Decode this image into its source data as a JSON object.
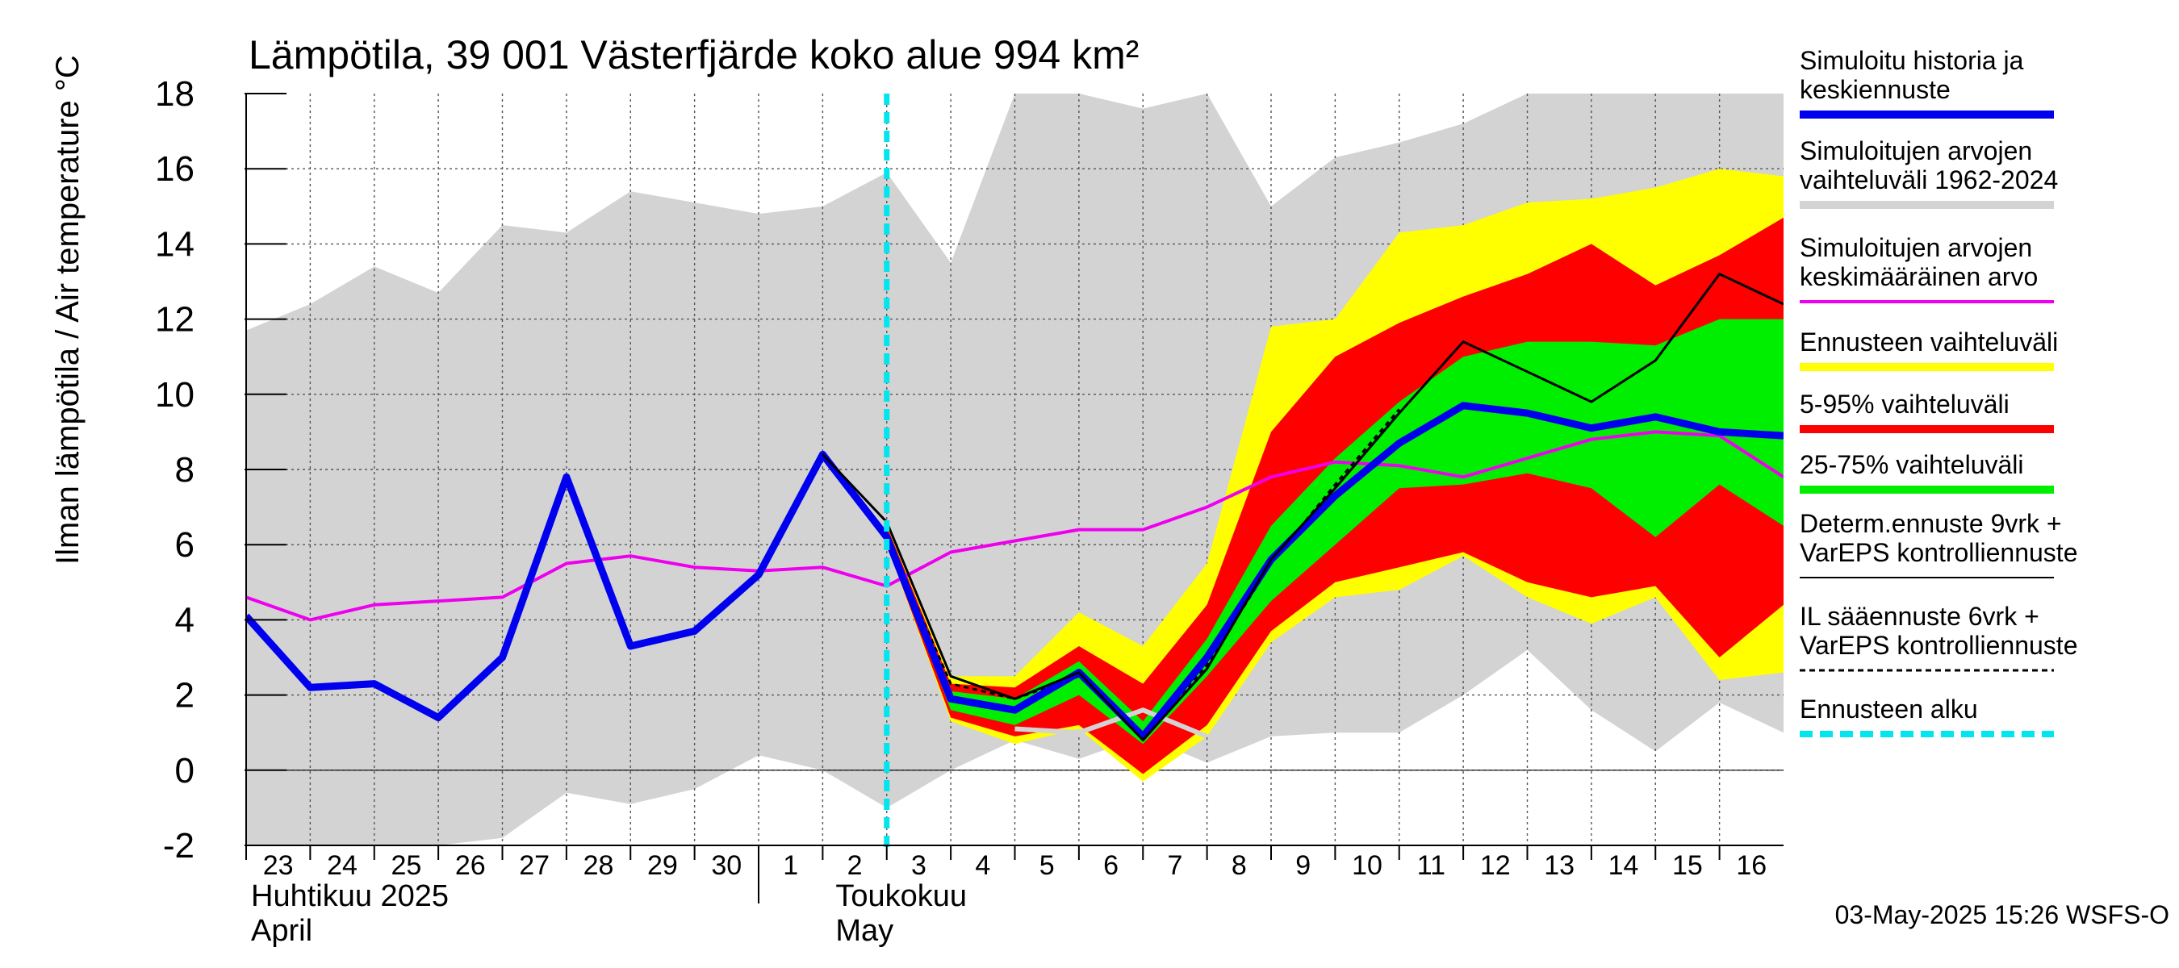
{
  "chart_data": {
    "type": "area",
    "title": "Lämpötila, 39 001 Västerfjärde koko alue 994 km²",
    "ylabel": "Ilman lämpötila / Air temperature   °C",
    "ylim": [
      -2,
      18
    ],
    "y_ticks": [
      "-2",
      "0",
      "2",
      "4",
      "6",
      "8",
      "10",
      "12",
      "14",
      "16",
      "18"
    ],
    "x_ticks": [
      "23",
      "24",
      "25",
      "26",
      "27",
      "28",
      "29",
      "30",
      "1",
      "2",
      "3",
      "4",
      "5",
      "6",
      "7",
      "8",
      "9",
      "10",
      "11",
      "12",
      "13",
      "14",
      "15",
      "16"
    ],
    "month_labels": [
      {
        "fi": "Huhtikuu  2025",
        "en": "April"
      },
      {
        "fi": "Toukokuu",
        "en": "May"
      }
    ],
    "forecast_start_day_index": 10,
    "timestamp": "03-May-2025 15:26 WSFS-O",
    "colors": {
      "history": "#0000ee",
      "range_1962_2024": "#d3d3d3",
      "mean": "#ee00ee",
      "ensemble_range": "#ffff00",
      "p5_95": "#ff0000",
      "p25_75": "#00ee00",
      "determ": "#000000",
      "forecast_start": "#00e5ee"
    },
    "legend": [
      {
        "label": "Simuloitu historia ja keskiennuste",
        "lines": [
          "Simuloitu historia ja",
          "keskiennuste"
        ],
        "color": "#0000ee",
        "style": "thick"
      },
      {
        "label": "Simuloitujen arvojen vaihteluväli 1962-2024",
        "lines": [
          "Simuloitujen arvojen",
          "vaihteluväli 1962-2024"
        ],
        "color": "#d3d3d3",
        "style": "thick"
      },
      {
        "label": "Simuloitujen arvojen keskimääräinen arvo",
        "lines": [
          "Simuloitujen arvojen",
          "keskimääräinen arvo"
        ],
        "color": "#ee00ee",
        "style": "medium"
      },
      {
        "label": "Ennusteen vaihteluväli",
        "lines": [
          "Ennusteen vaihteluväli"
        ],
        "color": "#ffff00",
        "style": "thick"
      },
      {
        "label": "5-95% vaihteluväli",
        "lines": [
          "5-95% vaihteluväli"
        ],
        "color": "#ff0000",
        "style": "thick"
      },
      {
        "label": "25-75% vaihteluväli",
        "lines": [
          "25-75% vaihteluväli"
        ],
        "color": "#00ee00",
        "style": "thick"
      },
      {
        "label": "Determ.ennuste 9vrk + VarEPS kontrolliennuste",
        "lines": [
          "Determ.ennuste 9vrk +",
          "VarEPS kontrolliennuste"
        ],
        "color": "#000000",
        "style": "thin"
      },
      {
        "label": "IL sääennuste 6vrk + VarEPS kontrolliennuste",
        "lines": [
          "IL sääennuste 6vrk  +",
          "  VarEPS kontrolliennuste"
        ],
        "color": "#000000",
        "style": "dashed"
      },
      {
        "label": "Ennusteen alku",
        "lines": [
          "Ennusteen alku"
        ],
        "color": "#00e5ee",
        "style": "dotted"
      }
    ],
    "series": {
      "range_1962_2024": {
        "x": [
          0,
          1,
          2,
          3,
          4,
          5,
          6,
          7,
          8,
          9,
          10,
          11,
          12,
          13,
          14,
          15,
          16,
          17,
          18,
          19,
          20,
          21,
          22,
          23,
          24
        ],
        "upper": [
          11.7,
          12.4,
          13.4,
          12.7,
          14.5,
          14.3,
          15.4,
          15.1,
          14.8,
          15.0,
          15.9,
          13.5,
          18.0,
          18.0,
          17.6,
          18.0,
          15.0,
          16.3,
          16.7,
          17.2,
          18.0,
          18.0,
          18.0,
          18.0,
          18.0
        ],
        "lower": [
          -2.0,
          -2.0,
          -2.0,
          -2.0,
          -1.8,
          -0.6,
          -0.9,
          -0.5,
          0.4,
          0.0,
          -1.0,
          0.0,
          0.8,
          0.3,
          0.9,
          0.2,
          0.9,
          1.0,
          1.0,
          2.0,
          3.2,
          1.6,
          0.5,
          1.8,
          1.0
        ]
      },
      "mean": {
        "x": [
          0,
          1,
          2,
          3,
          4,
          5,
          6,
          7,
          8,
          9,
          10,
          11,
          12,
          13,
          14,
          15,
          16,
          17,
          18,
          19,
          20,
          21,
          22,
          23,
          24
        ],
        "y": [
          4.6,
          4.0,
          4.4,
          4.5,
          4.6,
          5.5,
          5.7,
          5.4,
          5.3,
          5.4,
          4.9,
          5.8,
          6.1,
          6.4,
          6.4,
          7.0,
          7.8,
          8.2,
          8.1,
          7.8,
          8.3,
          8.8,
          9.0,
          8.9,
          7.8
        ]
      },
      "ensemble_range": {
        "x": [
          10,
          11,
          12,
          13,
          14,
          15,
          16,
          17,
          18,
          19,
          20,
          21,
          22,
          23,
          24
        ],
        "upper": [
          6.6,
          2.5,
          2.5,
          4.2,
          3.3,
          5.5,
          11.8,
          12.0,
          14.3,
          14.5,
          15.1,
          15.2,
          15.5,
          16.0,
          15.8
        ],
        "lower": [
          6.0,
          1.3,
          0.7,
          1.1,
          -0.3,
          0.9,
          3.4,
          4.6,
          4.8,
          5.7,
          4.6,
          3.9,
          4.6,
          2.4,
          2.6
        ]
      },
      "p5_95": {
        "x": [
          10,
          11,
          12,
          13,
          14,
          15,
          16,
          17,
          18,
          19,
          20,
          21,
          22,
          23,
          24
        ],
        "upper": [
          6.5,
          2.3,
          2.2,
          3.3,
          2.3,
          4.4,
          9.0,
          11.0,
          11.9,
          12.6,
          13.2,
          14.0,
          12.9,
          13.7,
          14.7
        ],
        "lower": [
          6.0,
          1.4,
          0.9,
          1.2,
          -0.1,
          1.2,
          3.7,
          5.0,
          5.4,
          5.8,
          5.0,
          4.6,
          4.9,
          3.0,
          4.4
        ]
      },
      "p25_75": {
        "x": [
          10,
          11,
          12,
          13,
          14,
          15,
          16,
          17,
          18,
          19,
          20,
          21,
          22,
          23,
          24
        ],
        "upper": [
          6.3,
          2.1,
          1.9,
          2.9,
          1.3,
          3.5,
          6.5,
          8.3,
          9.8,
          11.0,
          11.4,
          11.4,
          11.3,
          12.0,
          12.0
        ],
        "lower": [
          6.1,
          1.6,
          1.2,
          2.0,
          0.7,
          2.5,
          4.5,
          6.0,
          7.5,
          7.6,
          7.9,
          7.5,
          6.2,
          7.6,
          6.5
        ]
      },
      "history": {
        "x": [
          0,
          1,
          2,
          3,
          4,
          5,
          6,
          7,
          8,
          9,
          10,
          11,
          12,
          13,
          14,
          15,
          16,
          17,
          18,
          19,
          20,
          21,
          22,
          23,
          24
        ],
        "y": [
          4.1,
          2.2,
          2.3,
          1.4,
          3.0,
          7.8,
          3.3,
          3.7,
          5.2,
          8.4,
          6.2,
          1.9,
          1.6,
          2.6,
          0.9,
          3.0,
          5.6,
          7.3,
          8.7,
          9.7,
          9.5,
          9.1,
          9.4,
          9.0,
          8.9
        ]
      },
      "determ": {
        "x": [
          9,
          10,
          11,
          12,
          13,
          14,
          15,
          16,
          17,
          18,
          19,
          20,
          21,
          22,
          23,
          24
        ],
        "y": [
          8.4,
          6.6,
          2.5,
          1.9,
          2.6,
          0.8,
          2.7,
          5.6,
          7.5,
          9.5,
          11.4,
          10.6,
          9.8,
          10.9,
          13.2,
          12.4
        ]
      },
      "il_forecast": {
        "x": [
          9,
          10,
          11,
          12,
          13,
          14,
          15,
          16,
          17,
          18
        ],
        "y": [
          8.3,
          6.2,
          2.3,
          1.9,
          2.5,
          0.9,
          2.8,
          5.5,
          7.6,
          9.6
        ]
      },
      "control_ens": {
        "x": [
          12,
          13,
          14,
          15
        ],
        "y": [
          1.1,
          1.0,
          1.6,
          0.9
        ]
      }
    }
  }
}
